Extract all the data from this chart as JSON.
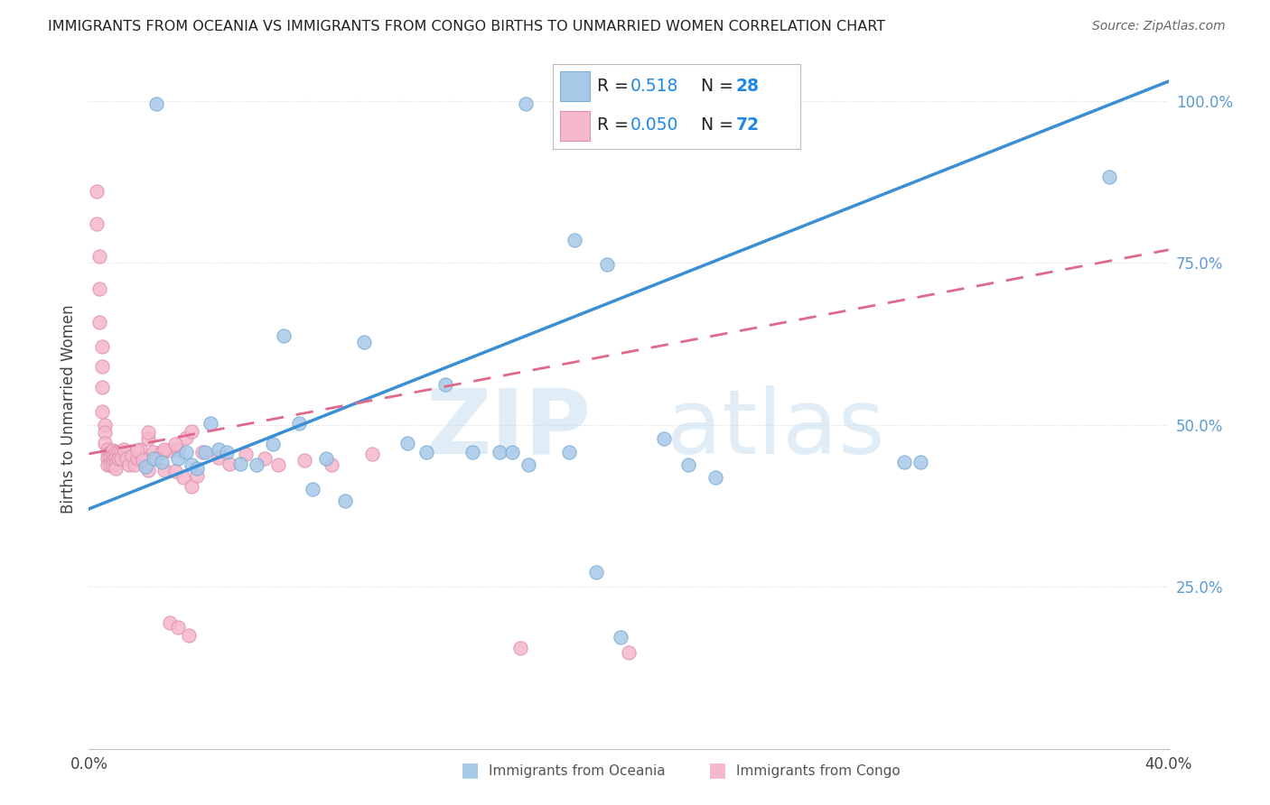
{
  "title": "IMMIGRANTS FROM OCEANIA VS IMMIGRANTS FROM CONGO BIRTHS TO UNMARRIED WOMEN CORRELATION CHART",
  "source": "Source: ZipAtlas.com",
  "xlabel_bottom": "Immigrants from Oceania",
  "xlabel_bottom2": "Immigrants from Congo",
  "ylabel": "Births to Unmarried Women",
  "xlim": [
    0.0,
    0.4
  ],
  "ylim": [
    0.0,
    1.05
  ],
  "color_oceania": "#a8c8e8",
  "color_oceania_edge": "#7aadd4",
  "color_congo": "#f5b8cc",
  "color_congo_edge": "#e090b0",
  "color_line_oceania": "#3a8fd4",
  "color_line_congo": "#e06888",
  "color_right_axis": "#5b9bd5",
  "color_grid": "#d8d8d8",
  "color_title": "#222222",
  "color_source": "#666666",
  "oceania_line_x0": 0.0,
  "oceania_line_y0": 0.37,
  "oceania_line_x1": 0.4,
  "oceania_line_y1": 1.03,
  "congo_line_x0": 0.0,
  "congo_line_y0": 0.455,
  "congo_line_x1": 0.4,
  "congo_line_y1": 0.77,
  "oceania_pts_x": [
    0.021,
    0.024,
    0.027,
    0.033,
    0.036,
    0.038,
    0.04,
    0.043,
    0.045,
    0.048,
    0.051,
    0.056,
    0.062,
    0.068,
    0.072,
    0.078,
    0.083,
    0.088,
    0.095,
    0.102,
    0.118,
    0.125,
    0.132,
    0.142,
    0.152,
    0.157,
    0.163,
    0.178,
    0.188,
    0.197,
    0.213,
    0.222,
    0.232,
    0.302,
    0.308,
    0.378,
    0.025,
    0.162,
    0.18,
    0.192
  ],
  "oceania_pts_y": [
    0.435,
    0.448,
    0.442,
    0.448,
    0.458,
    0.438,
    0.432,
    0.458,
    0.502,
    0.462,
    0.458,
    0.44,
    0.438,
    0.47,
    0.638,
    0.502,
    0.4,
    0.448,
    0.382,
    0.628,
    0.472,
    0.458,
    0.562,
    0.458,
    0.458,
    0.458,
    0.438,
    0.458,
    0.272,
    0.172,
    0.478,
    0.438,
    0.418,
    0.442,
    0.442,
    0.882,
    0.996,
    0.996,
    0.785,
    0.748
  ],
  "congo_pts_x": [
    0.003,
    0.003,
    0.004,
    0.004,
    0.004,
    0.005,
    0.005,
    0.005,
    0.005,
    0.006,
    0.006,
    0.006,
    0.007,
    0.007,
    0.007,
    0.007,
    0.008,
    0.008,
    0.008,
    0.009,
    0.009,
    0.009,
    0.009,
    0.01,
    0.01,
    0.01,
    0.01,
    0.011,
    0.011,
    0.012,
    0.012,
    0.013,
    0.014,
    0.015,
    0.016,
    0.017,
    0.018,
    0.019,
    0.02,
    0.022,
    0.024,
    0.027,
    0.03,
    0.033,
    0.036,
    0.022,
    0.028,
    0.032,
    0.038,
    0.018,
    0.02,
    0.022,
    0.025,
    0.028,
    0.032,
    0.035,
    0.038,
    0.04,
    0.03,
    0.033,
    0.037,
    0.042,
    0.048,
    0.052,
    0.058,
    0.065,
    0.07,
    0.08,
    0.09,
    0.105,
    0.16,
    0.2
  ],
  "congo_pts_y": [
    0.86,
    0.81,
    0.76,
    0.71,
    0.658,
    0.62,
    0.59,
    0.558,
    0.52,
    0.5,
    0.488,
    0.472,
    0.462,
    0.455,
    0.448,
    0.438,
    0.458,
    0.45,
    0.438,
    0.46,
    0.452,
    0.445,
    0.438,
    0.458,
    0.45,
    0.44,
    0.432,
    0.458,
    0.448,
    0.458,
    0.448,
    0.462,
    0.448,
    0.438,
    0.452,
    0.438,
    0.448,
    0.462,
    0.448,
    0.478,
    0.458,
    0.458,
    0.46,
    0.462,
    0.48,
    0.488,
    0.462,
    0.47,
    0.49,
    0.46,
    0.445,
    0.43,
    0.448,
    0.43,
    0.428,
    0.418,
    0.405,
    0.422,
    0.195,
    0.188,
    0.175,
    0.458,
    0.45,
    0.44,
    0.455,
    0.448,
    0.438,
    0.445,
    0.438,
    0.455,
    0.155,
    0.148
  ]
}
